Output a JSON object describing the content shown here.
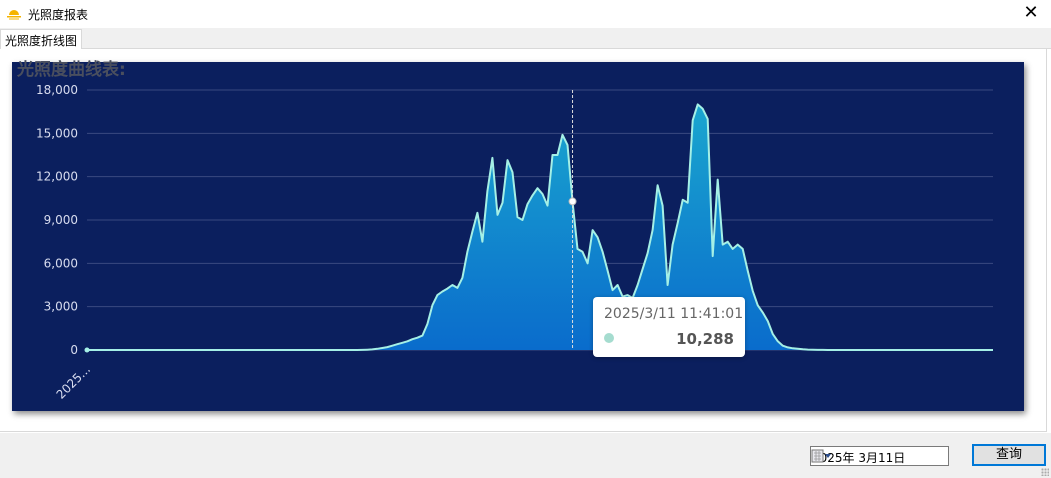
{
  "window": {
    "title": "光照度报表",
    "close_label": "✕",
    "icon": "sun-icon"
  },
  "tabs": [
    {
      "label": "光照度折线图",
      "active": true
    }
  ],
  "chart_data": {
    "type": "area",
    "title": "光照度曲线表:",
    "ylim": [
      0,
      18000
    ],
    "yticks": [
      "0",
      "3,000",
      "6,000",
      "9,000",
      "12,000",
      "15,000",
      "18,000"
    ],
    "x_tick_labels": [
      "2025..."
    ],
    "grid": true,
    "colors": {
      "background": "#0b1f5e",
      "line": "#a5f0e6",
      "fill_top": "#1aa6cf",
      "fill_bottom": "#0a6ccc",
      "grid": "#3a4a80"
    },
    "values": [
      0,
      0,
      0,
      0,
      0,
      0,
      0,
      0,
      0,
      0,
      0,
      0,
      0,
      0,
      0,
      0,
      0,
      0,
      0,
      0,
      0,
      0,
      0,
      0,
      0,
      0,
      0,
      0,
      0,
      0,
      0,
      0,
      0,
      0,
      0,
      0,
      0,
      0,
      0,
      0,
      0,
      0,
      0,
      0,
      0,
      0,
      0,
      0,
      0,
      0,
      0,
      0,
      0,
      0,
      0,
      10,
      20,
      40,
      80,
      140,
      200,
      300,
      400,
      500,
      600,
      750,
      850,
      1000,
      1800,
      3100,
      3800,
      4050,
      4250,
      4500,
      4300,
      5000,
      6800,
      8200,
      9500,
      7500,
      11000,
      13300,
      9350,
      10200,
      13150,
      12300,
      9200,
      9000,
      10100,
      10700,
      11200,
      10800,
      10000,
      13500,
      13500,
      14900,
      14200,
      10288,
      7000,
      6800,
      6000,
      8300,
      7800,
      6800,
      5500,
      4150,
      4500,
      3700,
      3800,
      3600,
      4500,
      5600,
      6700,
      8300,
      11400,
      10000,
      4500,
      7300,
      8800,
      10400,
      10200,
      15900,
      17000,
      16700,
      16000,
      6500,
      11800,
      7300,
      7500,
      7000,
      7300,
      7000,
      5500,
      4100,
      3100,
      2600,
      2000,
      1100,
      600,
      300,
      180,
      120,
      80,
      50,
      30,
      20,
      10,
      5,
      0,
      0,
      0,
      0,
      0,
      0,
      0,
      0,
      0,
      0,
      0,
      0,
      0,
      0,
      0,
      0,
      0,
      0,
      0,
      0,
      0,
      0,
      0,
      0,
      0,
      0,
      0,
      0,
      0,
      0,
      0,
      0,
      0,
      0
    ],
    "tooltip": {
      "label": "2025/3/11 11:41:01",
      "value": 10288,
      "value_text": "10,288",
      "marker_color": "#a5dccf"
    }
  },
  "footer": {
    "date_value": "2025年  3月11日",
    "query_label": "查询"
  }
}
